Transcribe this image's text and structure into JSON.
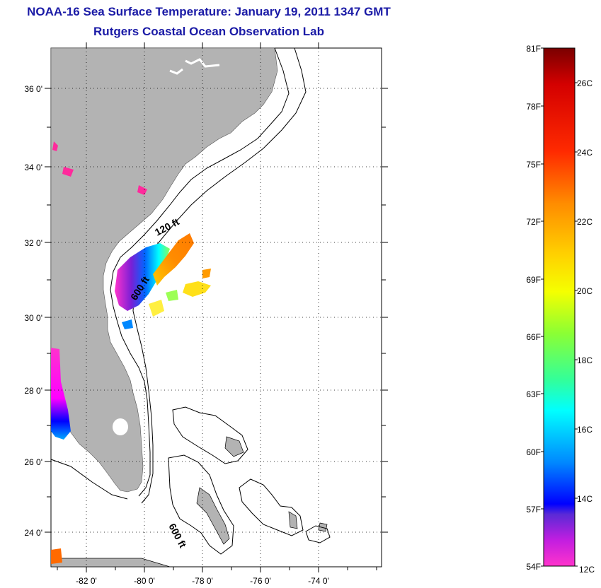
{
  "title": {
    "line1": "NOAA-16 Sea Surface Temperature:  January 19, 2011 1347 GMT",
    "line2": "Rutgers Coastal Ocean Observation Lab"
  },
  "map": {
    "lat_labels": [
      "36 0'",
      "34 0'",
      "32 0'",
      "30 0'",
      "28 0'",
      "26 0'",
      "24 0'"
    ],
    "lon_labels": [
      "-82 0'",
      "-80 0'",
      "-78 0'",
      "-76 0'",
      "-74 0'"
    ],
    "contour_labels": [
      "120 ft",
      "600 ft",
      "600 ft"
    ],
    "colors": {
      "land": "#b3b3b3",
      "ocean": "#ffffff",
      "contour": "#000000"
    }
  },
  "colorbar": {
    "fahrenheit_labels": [
      "81F",
      "78F",
      "75F",
      "72F",
      "69F",
      "66F",
      "63F",
      "60F",
      "57F",
      "54F"
    ],
    "celsius_labels": [
      "26C",
      "24C",
      "22C",
      "20C",
      "18C",
      "16C",
      "14C",
      "12C"
    ],
    "gradient_colors": [
      "#8b0000",
      "#ff0000",
      "#ff7f00",
      "#ffff00",
      "#7fff00",
      "#00ffff",
      "#0080ff",
      "#0000ff",
      "#8000ff",
      "#ff00ff",
      "#ff33cc"
    ]
  }
}
